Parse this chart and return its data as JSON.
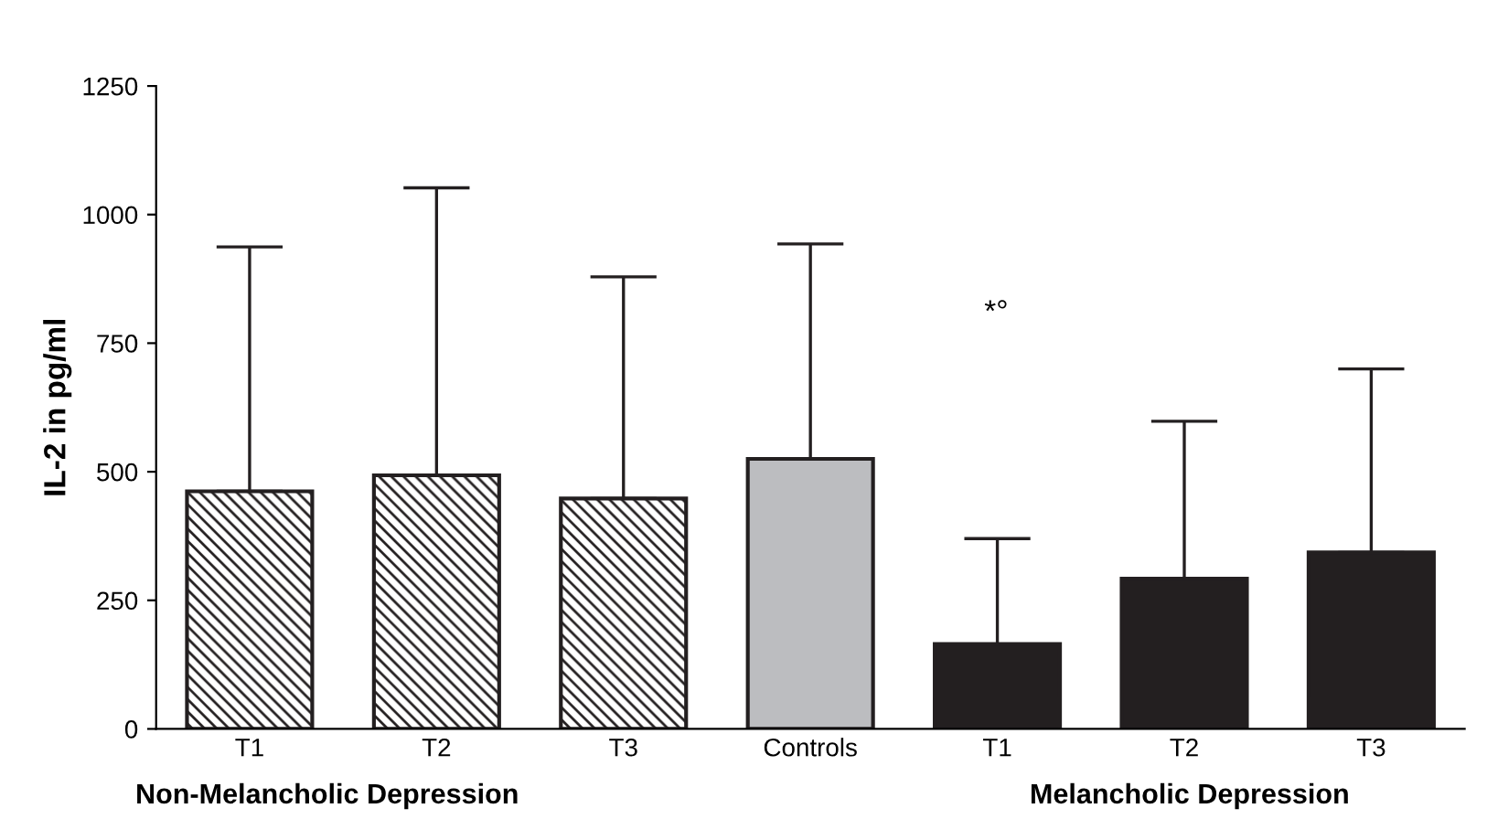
{
  "chart_data": {
    "type": "bar",
    "ylabel": "IL-2 in pg/ml",
    "categories": [
      "T1",
      "T2",
      "T3",
      "Controls",
      "T1",
      "T2",
      "T3"
    ],
    "values": [
      462,
      493,
      448,
      525,
      165,
      292,
      343
    ],
    "errors": [
      [
        462,
        937
      ],
      [
        493,
        1052
      ],
      [
        448,
        879
      ],
      [
        525,
        943
      ],
      [
        165,
        370
      ],
      [
        292,
        598
      ],
      [
        343,
        700
      ]
    ],
    "colors": [
      "#ffffff",
      "#ffffff",
      "#ffffff",
      "#bcbdc0",
      "#231f20",
      "#231f20",
      "#231f20"
    ],
    "ylim": [
      0,
      1250
    ],
    "yticks": [
      0,
      250,
      500,
      750,
      1000,
      1250
    ],
    "grid": false,
    "legend": false,
    "annotations": [
      "*°",
      "Non-Melancholic Depression",
      "Melancholic Depression"
    ]
  }
}
